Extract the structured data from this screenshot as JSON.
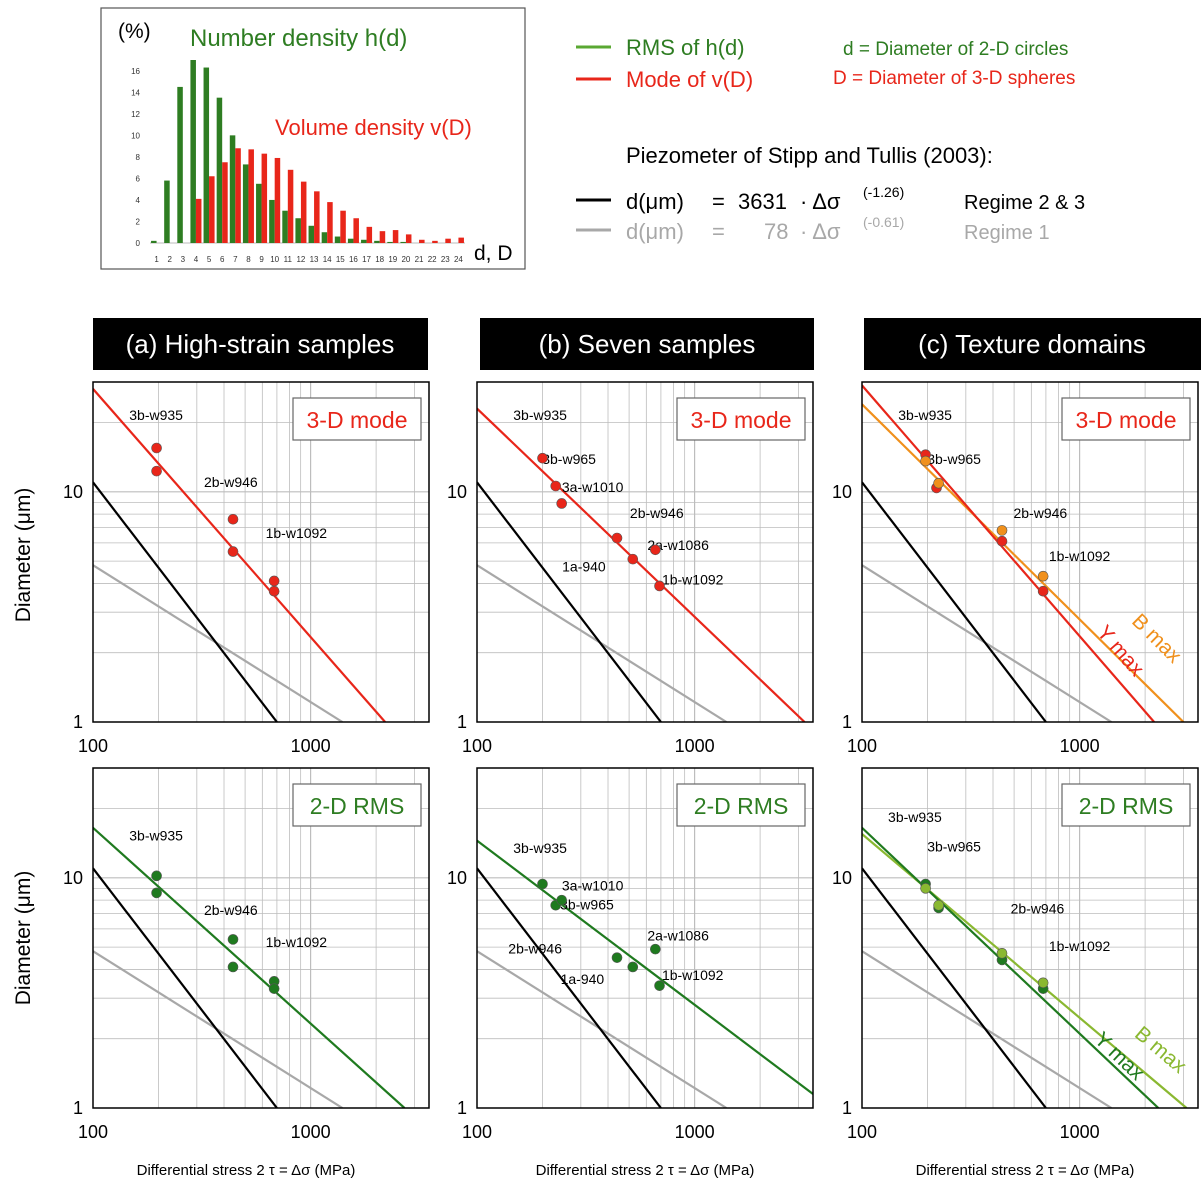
{
  "colors": {
    "green": "#2e7d22",
    "dark_green": "#1f7a1f",
    "light_green": "#8ab831",
    "red": "#e8261a",
    "orange": "#f0901c",
    "black": "#000000",
    "gray": "#a8a8a8",
    "header_bg": "#000000"
  },
  "inset": {
    "ylabel": "(%)",
    "number_density_label": "Number density h(d)",
    "volume_density_label": "Volume density v(D)",
    "xlabel": "d, D",
    "yticks": [
      "0",
      "2",
      "4",
      "6",
      "8",
      "10",
      "12",
      "14",
      "16"
    ],
    "xticks": [
      "1",
      "2",
      "3",
      "4",
      "5",
      "6",
      "7",
      "8",
      "9",
      "10",
      "11",
      "12",
      "13",
      "14",
      "15",
      "16",
      "17",
      "18",
      "19",
      "20",
      "21",
      "22",
      "23",
      "24"
    ]
  },
  "legend": {
    "rms": "RMS of h(d)",
    "mode": "Mode of v(D)",
    "d_def": "d = Diameter of 2-D circles",
    "D_def": "D = Diameter of 3-D spheres",
    "piezometer_title": "Piezometer of Stipp and Tullis (2003):",
    "eq1_lhs": "d(μm)",
    "eq1_eq": "=",
    "eq1_coef": "3631",
    "eq1_mid": "· Δσ",
    "eq1_exp": "(-1.26)",
    "eq1_regime": "Regime 2 & 3",
    "eq2_lhs": "d(μm)",
    "eq2_eq": "=",
    "eq2_coef": "78",
    "eq2_mid": "· Δσ",
    "eq2_exp": "(-0.61)",
    "eq2_regime": "Regime 1"
  },
  "headers": {
    "a": "(a) High-strain samples",
    "b": "(b) Seven samples",
    "c": "(c) Texture domains"
  },
  "axes": {
    "ylabel": "Diameter (μm)",
    "xlabel": "Differential stress 2 τ = Δσ (MPa)",
    "xticks": [
      "100",
      "1000"
    ],
    "yticks": [
      "1",
      "10"
    ]
  },
  "chart_data": [
    {
      "type": "bar",
      "categories": [
        1,
        2,
        3,
        4,
        5,
        6,
        7,
        8,
        9,
        10,
        11,
        12,
        13,
        14,
        15,
        16,
        17,
        18,
        19,
        20,
        21,
        22,
        23,
        24
      ],
      "series": [
        {
          "name": "Number density h(d)",
          "values": [
            0.2,
            5.8,
            14.5,
            17.0,
            16.3,
            13.5,
            10.0,
            7.3,
            5.5,
            4.0,
            3.0,
            2.3,
            1.6,
            1.0,
            0.6,
            0.4,
            0.3,
            0.2,
            0.1,
            0.1,
            0,
            0,
            0,
            0
          ]
        },
        {
          "name": "Volume density v(D)",
          "values": [
            0,
            0,
            0,
            4.1,
            6.2,
            7.5,
            8.8,
            8.7,
            8.3,
            7.9,
            6.8,
            5.7,
            4.8,
            3.8,
            3.0,
            2.3,
            1.5,
            1.1,
            1.2,
            0.8,
            0.3,
            0.2,
            0.4,
            0.5
          ]
        }
      ],
      "ylim": [
        0,
        17
      ]
    },
    {
      "id": "a-mode",
      "type": "scatter",
      "panel_label": "3-D mode",
      "color": "#e8261a",
      "xlim": [
        100,
        3500
      ],
      "ylim": [
        1,
        30
      ],
      "scale": "log-log",
      "fit": {
        "x": [
          100,
          2200
        ],
        "y": [
          28,
          1.0
        ]
      },
      "points": [
        [
          196,
          15.5
        ],
        [
          196,
          12.3
        ],
        [
          440,
          7.6
        ],
        [
          440,
          5.5
        ],
        [
          680,
          4.1
        ],
        [
          680,
          3.7
        ]
      ],
      "labels": [
        {
          "text": "3b-w935",
          "x": 195,
          "y": 20.5
        },
        {
          "text": "2b-w946",
          "x": 430,
          "y": 10.5
        },
        {
          "text": "1b-w1092",
          "x": 860,
          "y": 6.3
        }
      ],
      "piezometer_lines": {
        "black": {
          "x": [
            100,
            700
          ],
          "y": [
            11.0,
            1.0
          ]
        },
        "gray": {
          "x": [
            100,
            1400
          ],
          "y": [
            4.8,
            1.0
          ]
        }
      }
    },
    {
      "id": "b-mode",
      "type": "scatter",
      "panel_label": "3-D mode",
      "color": "#e8261a",
      "xlim": [
        100,
        3500
      ],
      "ylim": [
        1,
        30
      ],
      "scale": "log-log",
      "fit": {
        "x": [
          100,
          3200
        ],
        "y": [
          23,
          1.0
        ]
      },
      "points": [
        [
          200,
          14.0
        ],
        [
          230,
          10.6
        ],
        [
          245,
          8.9
        ],
        [
          440,
          6.3
        ],
        [
          520,
          5.1
        ],
        [
          660,
          5.6
        ],
        [
          690,
          3.9
        ]
      ],
      "labels": [
        {
          "text": "3b-w935",
          "x": 195,
          "y": 20.5
        },
        {
          "text": "3b-w965",
          "x": 265,
          "y": 13.2
        },
        {
          "text": "3a-w1010",
          "x": 340,
          "y": 10.0
        },
        {
          "text": "2b-w946",
          "x": 670,
          "y": 7.7
        },
        {
          "text": "2a-w1086",
          "x": 840,
          "y": 5.6
        },
        {
          "text": "1a-940",
          "x": 310,
          "y": 4.5
        },
        {
          "text": "1b-w1092",
          "x": 980,
          "y": 3.95
        }
      ],
      "piezometer_lines": {
        "black": {
          "x": [
            100,
            700
          ],
          "y": [
            11.0,
            1.0
          ]
        },
        "gray": {
          "x": [
            100,
            1400
          ],
          "y": [
            4.8,
            1.0
          ]
        }
      }
    },
    {
      "id": "c-mode",
      "type": "scatter",
      "panel_label": "3-D mode",
      "xlim": [
        100,
        3500
      ],
      "ylim": [
        1,
        30
      ],
      "scale": "log-log",
      "series": [
        {
          "name": "Y max",
          "color": "#e8261a",
          "fit": {
            "x": [
              100,
              2200
            ],
            "y": [
              29,
              1.0
            ]
          },
          "points": [
            [
              196,
              14.5
            ],
            [
              220,
              10.4
            ],
            [
              440,
              6.1
            ],
            [
              680,
              3.7
            ]
          ]
        },
        {
          "name": "B max",
          "color": "#f0901c",
          "fit": {
            "x": [
              100,
              3000
            ],
            "y": [
              24,
              1.0
            ]
          },
          "points": [
            [
              196,
              13.6
            ],
            [
              225,
              10.9
            ],
            [
              440,
              6.8
            ],
            [
              680,
              4.3
            ]
          ]
        }
      ],
      "labels": [
        {
          "text": "3b-w935",
          "x": 195,
          "y": 20.5
        },
        {
          "text": "3b-w965",
          "x": 265,
          "y": 13.2
        },
        {
          "text": "2b-w946",
          "x": 660,
          "y": 7.7
        },
        {
          "text": "1b-w1092",
          "x": 1000,
          "y": 5.0
        }
      ],
      "piezometer_lines": {
        "black": {
          "x": [
            100,
            700
          ],
          "y": [
            11.0,
            1.0
          ]
        },
        "gray": {
          "x": [
            100,
            1400
          ],
          "y": [
            4.8,
            1.0
          ]
        }
      }
    },
    {
      "id": "a-rms",
      "type": "scatter",
      "panel_label": "2-D RMS",
      "color": "#1f7a1f",
      "xlim": [
        100,
        3500
      ],
      "ylim": [
        1,
        30
      ],
      "scale": "log-log",
      "fit": {
        "x": [
          100,
          2700
        ],
        "y": [
          16.5,
          1.0
        ]
      },
      "points": [
        [
          196,
          10.2
        ],
        [
          196,
          8.6
        ],
        [
          440,
          5.4
        ],
        [
          440,
          4.1
        ],
        [
          680,
          3.55
        ],
        [
          680,
          3.3
        ]
      ],
      "labels": [
        {
          "text": "3b-w935",
          "x": 195,
          "y": 14.5
        },
        {
          "text": "2b-w946",
          "x": 430,
          "y": 6.9
        },
        {
          "text": "1b-w1092",
          "x": 860,
          "y": 5.0
        }
      ],
      "piezometer_lines": {
        "black": {
          "x": [
            100,
            700
          ],
          "y": [
            11.0,
            1.0
          ]
        },
        "gray": {
          "x": [
            100,
            1400
          ],
          "y": [
            4.8,
            1.0
          ]
        }
      }
    },
    {
      "id": "b-rms",
      "type": "scatter",
      "panel_label": "2-D RMS",
      "color": "#1f7a1f",
      "xlim": [
        100,
        3500
      ],
      "ylim": [
        1,
        30
      ],
      "scale": "log-log",
      "fit": {
        "x": [
          100,
          3500
        ],
        "y": [
          14.5,
          1.15
        ]
      },
      "points": [
        [
          200,
          9.4
        ],
        [
          230,
          7.6
        ],
        [
          245,
          8.0
        ],
        [
          440,
          4.5
        ],
        [
          520,
          4.1
        ],
        [
          660,
          4.9
        ],
        [
          690,
          3.4
        ]
      ],
      "labels": [
        {
          "text": "3b-w935",
          "x": 195,
          "y": 12.8
        },
        {
          "text": "3a-w1010",
          "x": 340,
          "y": 8.8
        },
        {
          "text": "3b-w965",
          "x": 320,
          "y": 7.3
        },
        {
          "text": "2a-w1086",
          "x": 840,
          "y": 5.35
        },
        {
          "text": "2b-w946",
          "x": 185,
          "y": 4.7
        },
        {
          "text": "1a-940",
          "x": 305,
          "y": 3.45
        },
        {
          "text": "1b-w1092",
          "x": 980,
          "y": 3.6
        }
      ],
      "piezometer_lines": {
        "black": {
          "x": [
            100,
            700
          ],
          "y": [
            11.0,
            1.0
          ]
        },
        "gray": {
          "x": [
            100,
            1400
          ],
          "y": [
            4.8,
            1.0
          ]
        }
      }
    },
    {
      "id": "c-rms",
      "type": "scatter",
      "panel_label": "2-D RMS",
      "xlim": [
        100,
        3500
      ],
      "ylim": [
        1,
        30
      ],
      "scale": "log-log",
      "series": [
        {
          "name": "Y max",
          "color": "#1f7a1f",
          "fit": {
            "x": [
              100,
              2300
            ],
            "y": [
              16.5,
              1.0
            ]
          },
          "points": [
            [
              196,
              9.4
            ],
            [
              225,
              7.4
            ],
            [
              440,
              4.4
            ],
            [
              680,
              3.3
            ]
          ]
        },
        {
          "name": "B max",
          "color": "#8ab831",
          "fit": {
            "x": [
              100,
              3100
            ],
            "y": [
              15.5,
              1.0
            ]
          },
          "points": [
            [
              196,
              9.0
            ],
            [
              225,
              7.6
            ],
            [
              440,
              4.7
            ],
            [
              680,
              3.5
            ]
          ]
        }
      ],
      "labels": [
        {
          "text": "3b-w935",
          "x": 175,
          "y": 17.5
        },
        {
          "text": "3b-w965",
          "x": 265,
          "y": 13.0
        },
        {
          "text": "2b-w946",
          "x": 640,
          "y": 7.0
        },
        {
          "text": "1b-w1092",
          "x": 1000,
          "y": 4.8
        }
      ],
      "piezometer_lines": {
        "black": {
          "x": [
            100,
            700
          ],
          "y": [
            11.0,
            1.0
          ]
        },
        "gray": {
          "x": [
            100,
            1400
          ],
          "y": [
            4.8,
            1.0
          ]
        }
      }
    }
  ]
}
